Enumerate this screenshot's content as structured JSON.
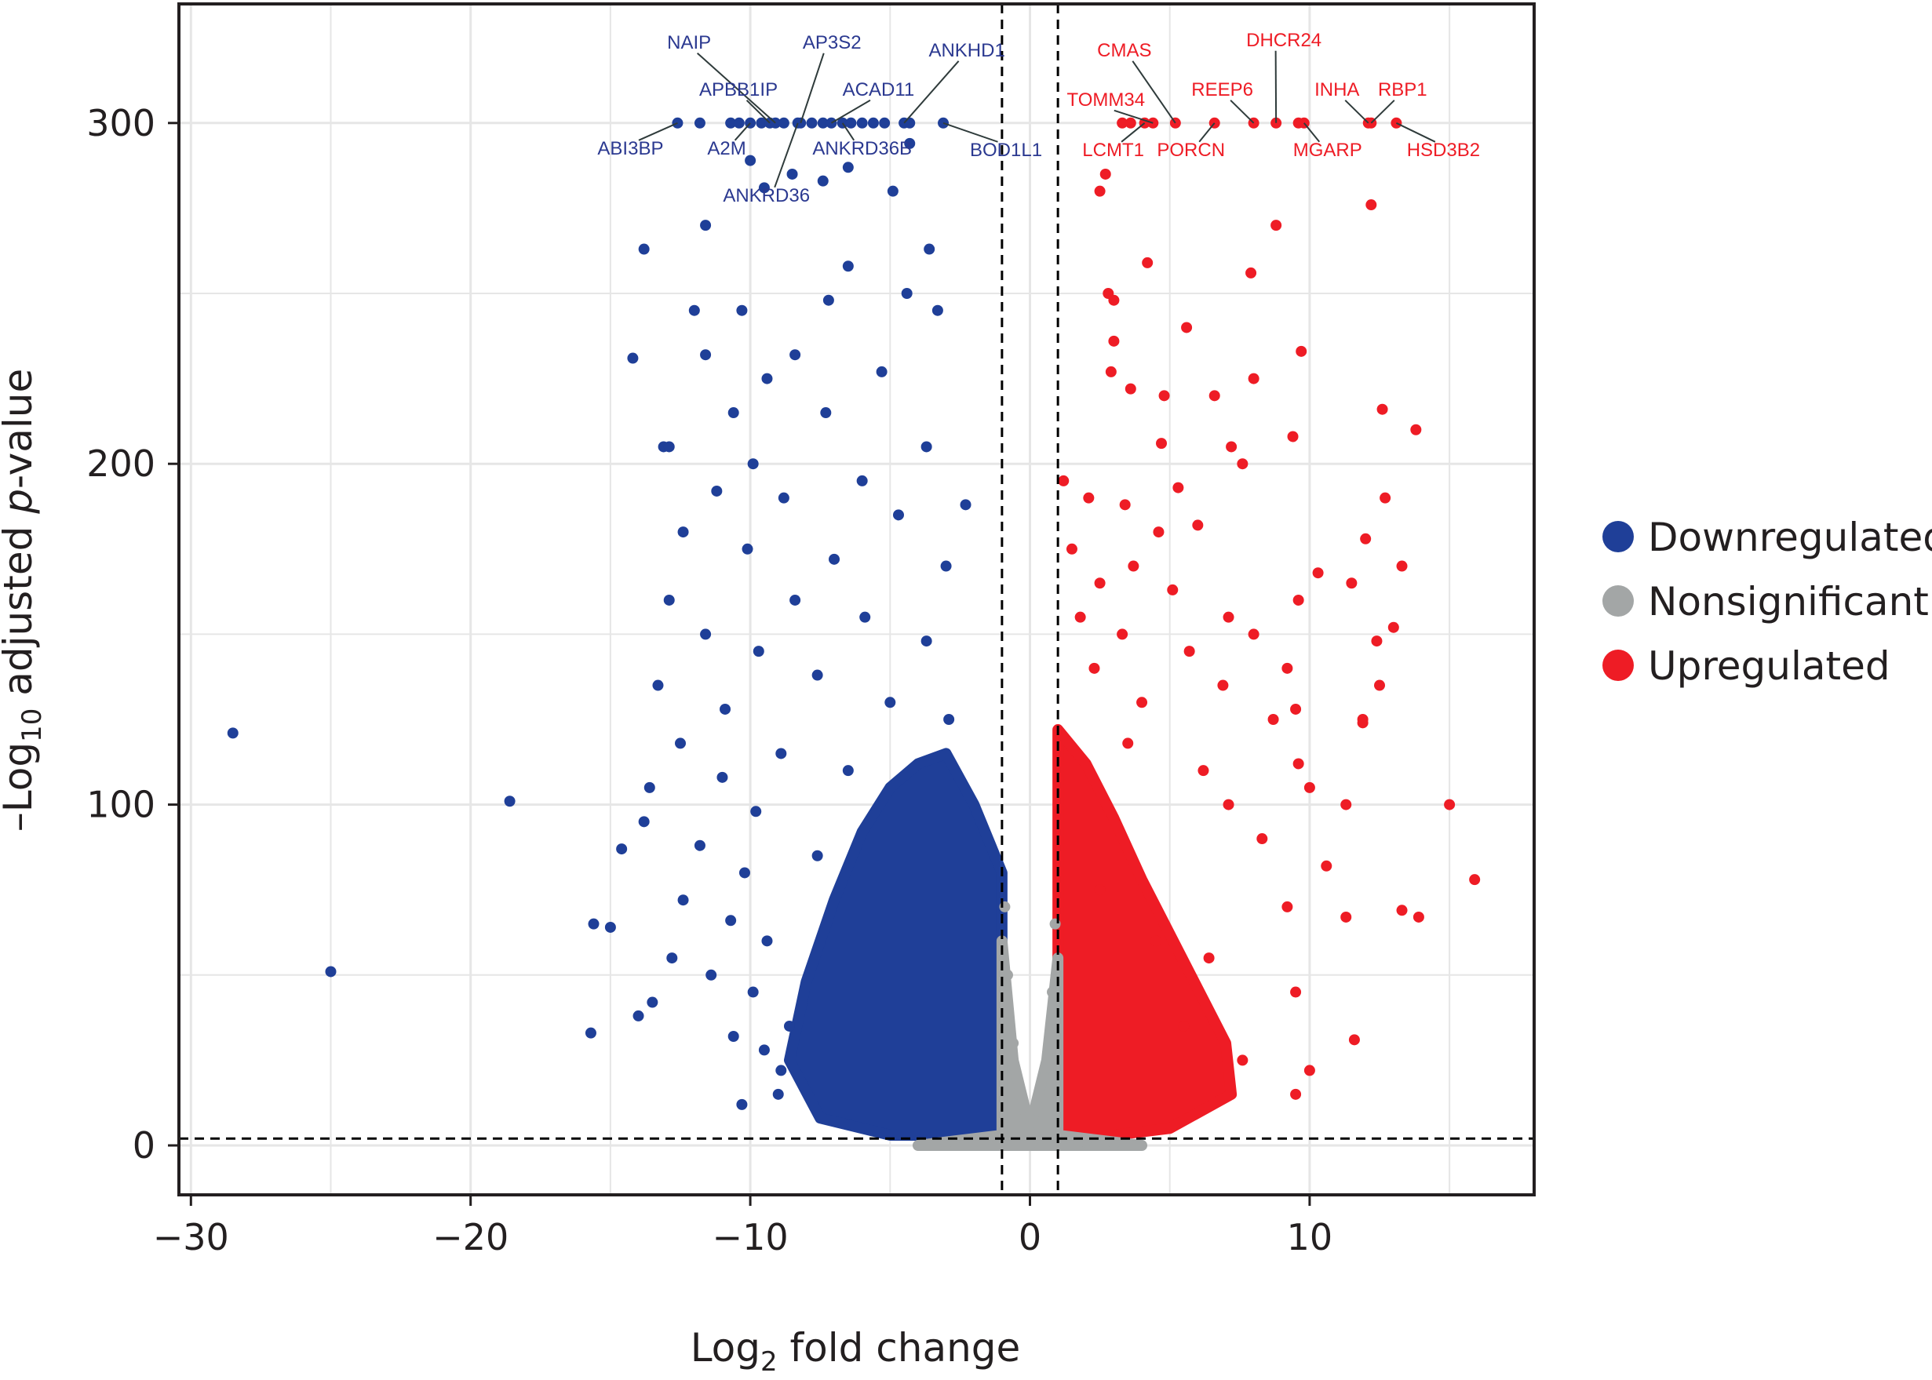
{
  "chart_data": {
    "type": "scatter",
    "subtype": "volcano",
    "title": "",
    "xlabel_main": "Log",
    "xlabel_sub": "2",
    "xlabel_rest": " fold change",
    "ylabel_prefix": "–Log",
    "ylabel_sub": "10",
    "ylabel_mid": " adjusted ",
    "ylabel_italic": "p",
    "ylabel_rest": "-value",
    "xlim": [
      -30.4,
      18
    ],
    "ylim": [
      -14,
      335
    ],
    "xticks": [
      -30,
      -20,
      -10,
      0,
      10
    ],
    "xtick_labels": [
      "−30",
      "−20",
      "−10",
      "0",
      "10"
    ],
    "yticks": [
      0,
      100,
      200,
      300
    ],
    "ytick_labels": [
      "0",
      "100",
      "200",
      "300"
    ],
    "grid": true,
    "thresholds": {
      "log2fc": [
        -1,
        1
      ],
      "neg_log10_padj": 2
    },
    "legend_position": "right",
    "colors": {
      "Downregulated": "#1f3f98",
      "Nonsignificant": "#a3a6a6",
      "Upregulated": "#ee1c25"
    },
    "legend": [
      "Downregulated",
      "Nonsignificant",
      "Upregulated"
    ],
    "dense_regions": {
      "Downregulated": [
        [
          -1,
          3
        ],
        [
          -1,
          80
        ],
        [
          -2,
          100
        ],
        [
          -3,
          115
        ],
        [
          -4,
          112
        ],
        [
          -5,
          105
        ],
        [
          -6,
          92
        ],
        [
          -7,
          72
        ],
        [
          -8,
          48
        ],
        [
          -8.6,
          25
        ],
        [
          -7.5,
          8
        ],
        [
          -5,
          3
        ]
      ],
      "Upregulated": [
        [
          1,
          3
        ],
        [
          1,
          122
        ],
        [
          2,
          112
        ],
        [
          3,
          96
        ],
        [
          4,
          78
        ],
        [
          5,
          62
        ],
        [
          6,
          46
        ],
        [
          7,
          30
        ],
        [
          7.2,
          15
        ],
        [
          5,
          5
        ],
        [
          3,
          3
        ]
      ],
      "Nonsignificant": [
        [
          -4,
          0
        ],
        [
          -1,
          3
        ],
        [
          -1,
          60
        ],
        [
          -0.6,
          25
        ],
        [
          0,
          5
        ],
        [
          0.6,
          25
        ],
        [
          1,
          55
        ],
        [
          1,
          3
        ],
        [
          4,
          0
        ]
      ]
    },
    "series": [
      {
        "name": "Downregulated",
        "points": [
          [
            -12.6,
            300
          ],
          [
            -11.8,
            300
          ],
          [
            -10.7,
            300
          ],
          [
            -10.4,
            300
          ],
          [
            -10,
            300
          ],
          [
            -9.6,
            300
          ],
          [
            -9.3,
            300
          ],
          [
            -9.1,
            300
          ],
          [
            -8.8,
            300
          ],
          [
            -8.3,
            300
          ],
          [
            -8.2,
            300
          ],
          [
            -7.8,
            300
          ],
          [
            -7.4,
            300
          ],
          [
            -7.1,
            300
          ],
          [
            -6.7,
            300
          ],
          [
            -6.4,
            300
          ],
          [
            -6,
            300
          ],
          [
            -5.6,
            300
          ],
          [
            -5.2,
            300
          ],
          [
            -4.5,
            300
          ],
          [
            -4.3,
            300
          ],
          [
            -3.1,
            300
          ],
          [
            -4.3,
            294
          ],
          [
            -6.5,
            287
          ],
          [
            -9.5,
            281
          ],
          [
            -10,
            289
          ],
          [
            -8.5,
            285
          ],
          [
            -7.4,
            283
          ],
          [
            -4.9,
            280
          ],
          [
            -11.6,
            270
          ],
          [
            -13.8,
            263
          ],
          [
            -3.6,
            263
          ],
          [
            -6.5,
            258
          ],
          [
            -7.2,
            248
          ],
          [
            -4.4,
            250
          ],
          [
            -10.3,
            245
          ],
          [
            -12.0,
            245
          ],
          [
            -14.2,
            231
          ],
          [
            -3.3,
            245
          ],
          [
            -8.4,
            232
          ],
          [
            -11.6,
            232
          ],
          [
            -9.4,
            225
          ],
          [
            -5.3,
            227
          ],
          [
            -10.6,
            215
          ],
          [
            -7.3,
            215
          ],
          [
            -13.1,
            205
          ],
          [
            -12.9,
            205
          ],
          [
            -9.9,
            200
          ],
          [
            -3.7,
            205
          ],
          [
            -6.0,
            195
          ],
          [
            -11.2,
            192
          ],
          [
            -8.8,
            190
          ],
          [
            -2.3,
            188
          ],
          [
            -4.7,
            185
          ],
          [
            -12.4,
            180
          ],
          [
            -10.1,
            175
          ],
          [
            -7.0,
            172
          ],
          [
            -3.0,
            170
          ],
          [
            -12.9,
            160
          ],
          [
            -8.4,
            160
          ],
          [
            -5.9,
            155
          ],
          [
            -11.6,
            150
          ],
          [
            -9.7,
            145
          ],
          [
            -3.7,
            148
          ],
          [
            -13.3,
            135
          ],
          [
            -7.6,
            138
          ],
          [
            -10.9,
            128
          ],
          [
            -5.0,
            130
          ],
          [
            -2.9,
            125
          ],
          [
            -28.5,
            121
          ],
          [
            -12.5,
            118
          ],
          [
            -8.9,
            115
          ],
          [
            -11.0,
            108
          ],
          [
            -6.5,
            110
          ],
          [
            -18.6,
            101
          ],
          [
            -13.6,
            105
          ],
          [
            -9.8,
            98
          ],
          [
            -13.8,
            95
          ],
          [
            -14.6,
            87
          ],
          [
            -11.8,
            88
          ],
          [
            -10.2,
            80
          ],
          [
            -7.6,
            85
          ],
          [
            -12.4,
            72
          ],
          [
            -15.6,
            65
          ],
          [
            -15.0,
            64
          ],
          [
            -10.7,
            66
          ],
          [
            -9.4,
            60
          ],
          [
            -12.8,
            55
          ],
          [
            -25,
            51
          ],
          [
            -11.4,
            50
          ],
          [
            -9.9,
            45
          ],
          [
            -13.5,
            42
          ],
          [
            -14.0,
            38
          ],
          [
            -15.7,
            33
          ],
          [
            -10.6,
            32
          ],
          [
            -9.5,
            28
          ],
          [
            -8.9,
            22
          ],
          [
            -10.3,
            12
          ],
          [
            -9.0,
            15
          ],
          [
            -8.6,
            35
          ]
        ]
      },
      {
        "name": "Nonsignificant",
        "points": [
          [
            -0.8,
            50
          ],
          [
            -0.6,
            30
          ],
          [
            -0.4,
            15
          ],
          [
            -0.2,
            8
          ],
          [
            0,
            4
          ],
          [
            0.3,
            10
          ],
          [
            0.5,
            20
          ],
          [
            0.8,
            45
          ],
          [
            -2,
            1
          ],
          [
            -3,
            0.5
          ],
          [
            2,
            1
          ],
          [
            3,
            0.5
          ],
          [
            -1.5,
            2
          ],
          [
            1.5,
            2
          ],
          [
            0.1,
            1
          ],
          [
            -0.9,
            70
          ],
          [
            0.9,
            65
          ]
        ]
      },
      {
        "name": "Upregulated",
        "points": [
          [
            3.6,
            300
          ],
          [
            4.1,
            300
          ],
          [
            4.4,
            300
          ],
          [
            5.2,
            300
          ],
          [
            6.6,
            300
          ],
          [
            8.0,
            300
          ],
          [
            8.8,
            300
          ],
          [
            9.6,
            300
          ],
          [
            9.8,
            300
          ],
          [
            12.1,
            300
          ],
          [
            12.2,
            300
          ],
          [
            13.1,
            300
          ],
          [
            3.3,
            300
          ],
          [
            2.7,
            285
          ],
          [
            2.5,
            280
          ],
          [
            12.2,
            276
          ],
          [
            8.8,
            270
          ],
          [
            4.2,
            259
          ],
          [
            7.9,
            256
          ],
          [
            2.8,
            250
          ],
          [
            3.0,
            248
          ],
          [
            5.6,
            240
          ],
          [
            3.0,
            236
          ],
          [
            9.7,
            233
          ],
          [
            2.9,
            227
          ],
          [
            8.0,
            225
          ],
          [
            3.6,
            222
          ],
          [
            4.8,
            220
          ],
          [
            6.6,
            220
          ],
          [
            13.8,
            210
          ],
          [
            12.6,
            216
          ],
          [
            4.7,
            206
          ],
          [
            9.4,
            208
          ],
          [
            7.2,
            205
          ],
          [
            7.6,
            200
          ],
          [
            1.2,
            195
          ],
          [
            2.1,
            190
          ],
          [
            5.3,
            193
          ],
          [
            12.7,
            190
          ],
          [
            3.4,
            188
          ],
          [
            4.6,
            180
          ],
          [
            6.0,
            182
          ],
          [
            12.0,
            178
          ],
          [
            11.5,
            165
          ],
          [
            10.3,
            168
          ],
          [
            13.3,
            170
          ],
          [
            1.5,
            175
          ],
          [
            3.7,
            170
          ],
          [
            2.5,
            165
          ],
          [
            5.1,
            163
          ],
          [
            9.6,
            160
          ],
          [
            13.0,
            152
          ],
          [
            12.4,
            148
          ],
          [
            7.1,
            155
          ],
          [
            8.0,
            150
          ],
          [
            1.8,
            155
          ],
          [
            3.3,
            150
          ],
          [
            5.7,
            145
          ],
          [
            9.2,
            140
          ],
          [
            2.3,
            140
          ],
          [
            6.9,
            135
          ],
          [
            12.5,
            135
          ],
          [
            8.7,
            125
          ],
          [
            9.5,
            128
          ],
          [
            11.9,
            125
          ],
          [
            11.9,
            124
          ],
          [
            4.0,
            130
          ],
          [
            9.6,
            112
          ],
          [
            10.0,
            105
          ],
          [
            15.0,
            100
          ],
          [
            11.3,
            100
          ],
          [
            6.2,
            110
          ],
          [
            3.5,
            118
          ],
          [
            15.9,
            78
          ],
          [
            10.6,
            82
          ],
          [
            13.3,
            69
          ],
          [
            13.9,
            67
          ],
          [
            11.3,
            67
          ],
          [
            8.3,
            90
          ],
          [
            7.1,
            100
          ],
          [
            2.5,
            75
          ],
          [
            4.5,
            60
          ],
          [
            9.2,
            70
          ],
          [
            6.4,
            55
          ],
          [
            10.0,
            22
          ],
          [
            9.5,
            45
          ],
          [
            11.6,
            31
          ],
          [
            9.5,
            15
          ],
          [
            7.6,
            25
          ],
          [
            5.5,
            35
          ]
        ]
      }
    ],
    "labels": [
      {
        "gene": "ABI3BP",
        "group": "Downregulated",
        "x": -12.6,
        "y": 300
      },
      {
        "gene": "NAIP",
        "group": "Downregulated",
        "x": -9.1,
        "y": 300
      },
      {
        "gene": "APBB1IP",
        "group": "Downregulated",
        "x": -9.3,
        "y": 300
      },
      {
        "gene": "A2M",
        "group": "Downregulated",
        "x": -10.0,
        "y": 300
      },
      {
        "gene": "AP3S2",
        "group": "Downregulated",
        "x": -8.2,
        "y": 300
      },
      {
        "gene": "ANKRD36",
        "group": "Downregulated",
        "x": -8.3,
        "y": 300
      },
      {
        "gene": "ACAD11",
        "group": "Downregulated",
        "x": -7.1,
        "y": 300
      },
      {
        "gene": "ANKRD36B",
        "group": "Downregulated",
        "x": -6.7,
        "y": 300
      },
      {
        "gene": "ANKHD1",
        "group": "Downregulated",
        "x": -4.5,
        "y": 300
      },
      {
        "gene": "BOD1L1",
        "group": "Downregulated",
        "x": -3.1,
        "y": 300
      },
      {
        "gene": "CMAS",
        "group": "Upregulated",
        "x": 5.2,
        "y": 300
      },
      {
        "gene": "TOMM34",
        "group": "Upregulated",
        "x": 4.4,
        "y": 300
      },
      {
        "gene": "LCMT1",
        "group": "Upregulated",
        "x": 4.1,
        "y": 300
      },
      {
        "gene": "DHCR24",
        "group": "Upregulated",
        "x": 8.8,
        "y": 300
      },
      {
        "gene": "REEP6",
        "group": "Upregulated",
        "x": 8.0,
        "y": 300
      },
      {
        "gene": "PORCN",
        "group": "Upregulated",
        "x": 6.6,
        "y": 300
      },
      {
        "gene": "MGARP",
        "group": "Upregulated",
        "x": 9.8,
        "y": 300
      },
      {
        "gene": "INHA",
        "group": "Upregulated",
        "x": 12.1,
        "y": 300
      },
      {
        "gene": "RBP1",
        "group": "Upregulated",
        "x": 12.2,
        "y": 300
      },
      {
        "gene": "HSD3B2",
        "group": "Upregulated",
        "x": 13.1,
        "y": 300
      }
    ]
  }
}
